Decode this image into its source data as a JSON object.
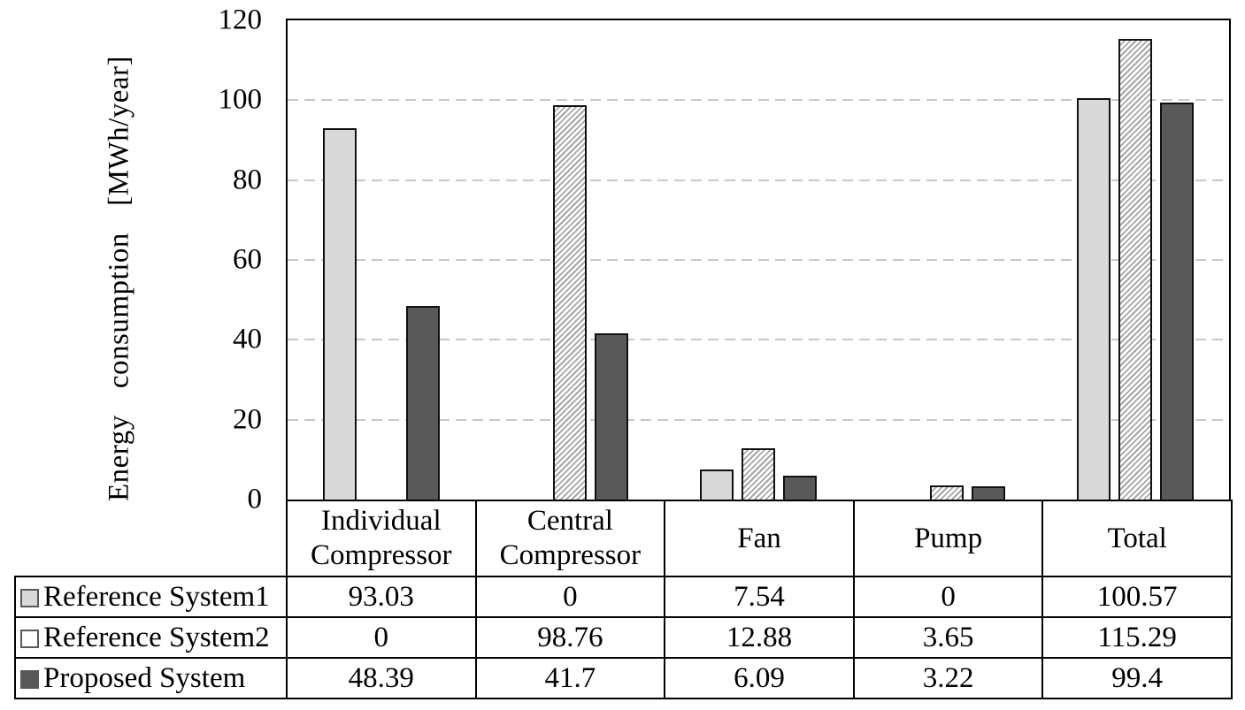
{
  "chart_data": {
    "type": "bar",
    "title": "",
    "ylabel": "Energy consumption [MWh/year]",
    "xlabel": "",
    "ylim": [
      0,
      120
    ],
    "yticks": [
      0,
      20,
      40,
      60,
      80,
      100,
      120
    ],
    "grid": "horizontal-dashed",
    "legend_position": "data-table-left-column",
    "axis_color": "#000000",
    "gridline_color": "#c8c8c8",
    "bar_outline": "#111111",
    "categories": [
      "Individual Compressor",
      "Central Compressor",
      "Fan",
      "Pump",
      "Total"
    ],
    "series": [
      {
        "name": "Reference System1",
        "pattern": "solid",
        "fill": "#d9d9d9",
        "values": [
          93.03,
          0,
          7.54,
          0,
          100.57
        ],
        "value_labels": [
          "93.03",
          "0",
          "7.54",
          "0",
          "100.57"
        ]
      },
      {
        "name": "Reference System2",
        "pattern": "diagonal-hatch",
        "fill": "#ffffff",
        "hatch_color": "#a6a6a6",
        "values": [
          0,
          98.76,
          12.88,
          3.65,
          115.29
        ],
        "value_labels": [
          "0",
          "98.76",
          "12.88",
          "3.65",
          "115.29"
        ]
      },
      {
        "name": "Proposed System",
        "pattern": "solid",
        "fill": "#595959",
        "values": [
          48.39,
          41.7,
          6.09,
          3.22,
          99.4
        ],
        "value_labels": [
          "48.39",
          "41.7",
          "6.09",
          "3.22",
          "99.4"
        ]
      }
    ]
  }
}
